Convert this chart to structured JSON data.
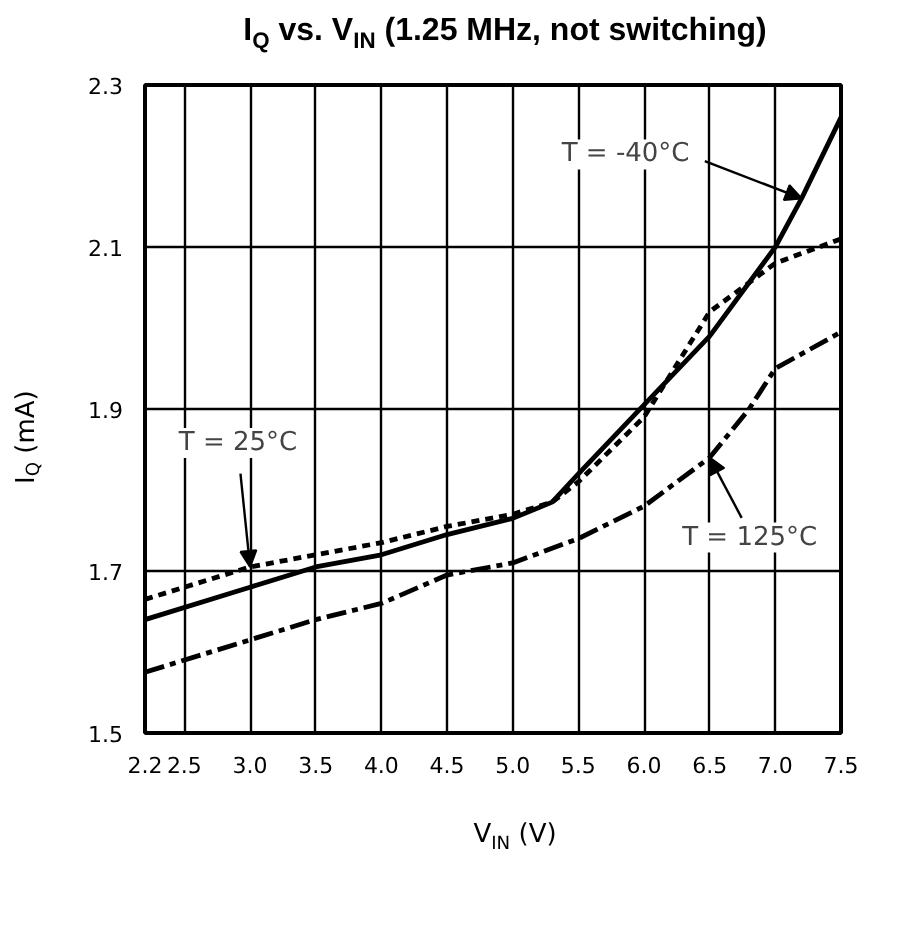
{
  "chart_data": {
    "type": "line",
    "title": "I$_{Q}$ vs. V$_{IN}$ (1.25 MHz, not switching)",
    "xlabel": "V$_{IN}$ (V)",
    "ylabel": "I$_{Q}$ (mA)",
    "xlim": [
      2.2,
      7.5
    ],
    "xticks": [
      2.2,
      2.5,
      {
        "value": 3,
        "label": "3.0"
      },
      3.5,
      {
        "value": 4,
        "label": "4.0"
      },
      4.5,
      {
        "value": 5,
        "label": "5.0"
      },
      5.5,
      {
        "value": 6,
        "label": "6.0"
      },
      6.5,
      {
        "value": 7,
        "label": "7.0"
      },
      7.5
    ],
    "ylim": [
      1.5,
      2.3
    ],
    "yticks": [
      1.5,
      1.7,
      1.9,
      2.1,
      2.3
    ],
    "grid": true,
    "series": [
      {
        "color": "#000000",
        "line_style": "solid",
        "x": [
          2.2,
          3.0,
          3.5,
          4.0,
          4.5,
          5.0,
          5.3,
          5.5,
          6.0,
          6.5,
          7.0,
          7.2,
          7.5
        ],
        "values": [
          1.64,
          1.68,
          1.705,
          1.72,
          1.745,
          1.765,
          1.785,
          1.82,
          1.905,
          1.99,
          2.1,
          2.16,
          2.26
        ]
      },
      {
        "color": "#000000",
        "line_style": "dashed",
        "x": [
          2.2,
          3.0,
          3.5,
          4.0,
          4.5,
          5.0,
          5.3,
          5.5,
          6.0,
          6.5,
          7.0,
          7.5
        ],
        "values": [
          1.665,
          1.705,
          1.72,
          1.735,
          1.755,
          1.77,
          1.785,
          1.81,
          1.89,
          2.02,
          2.08,
          2.11
        ]
      },
      {
        "color": "#000000",
        "line_style": "dashdot",
        "x": [
          2.2,
          3.0,
          3.5,
          4.0,
          4.5,
          5.0,
          5.5,
          6.0,
          6.5,
          6.8,
          7.0,
          7.5
        ],
        "values": [
          1.575,
          1.615,
          1.64,
          1.66,
          1.695,
          1.71,
          1.74,
          1.78,
          1.84,
          1.9,
          1.95,
          1.995
        ]
      }
    ],
    "annotations": [
      {
        "text": "T = -40°C",
        "x": 7.2,
        "y": 2.16
      },
      {
        "text": "T = 25°C",
        "x": 3.0,
        "y": 1.705
      },
      {
        "text": "T = 125°C",
        "x": 6.5,
        "y": 1.84
      }
    ]
  }
}
